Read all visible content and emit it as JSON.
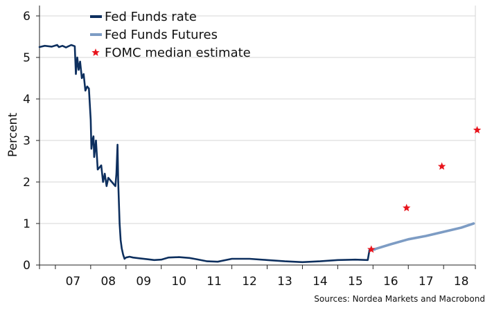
{
  "chart_data": {
    "type": "line",
    "title": "",
    "xlabel": "",
    "ylabel": "Percent",
    "ylim": [
      0,
      6.25
    ],
    "xlim": [
      2006.55,
      2018.9
    ],
    "grid": true,
    "legend_placement": "top-left",
    "x_ticks": [
      2006.5,
      2007,
      2008,
      2009,
      2010,
      2011,
      2012,
      2013,
      2014,
      2015,
      2016,
      2017,
      2018,
      2018.9
    ],
    "x_tick_labels": [
      {
        "x": 2007.5,
        "label": "07"
      },
      {
        "x": 2008.5,
        "label": "08"
      },
      {
        "x": 2009.5,
        "label": "09"
      },
      {
        "x": 2010.5,
        "label": "10"
      },
      {
        "x": 2011.5,
        "label": "11"
      },
      {
        "x": 2012.5,
        "label": "12"
      },
      {
        "x": 2013.5,
        "label": "13"
      },
      {
        "x": 2014.5,
        "label": "14"
      },
      {
        "x": 2015.5,
        "label": "15"
      },
      {
        "x": 2016.5,
        "label": "16"
      },
      {
        "x": 2017.5,
        "label": "17"
      },
      {
        "x": 2018.5,
        "label": "18"
      }
    ],
    "y_ticks": [
      0,
      1,
      2,
      3,
      4,
      5,
      6
    ],
    "y_tick_labels": [
      "0",
      "1",
      "2",
      "3",
      "4",
      "5",
      "6"
    ],
    "source": "Sources: Nordea Markets and Macrobond",
    "series": [
      {
        "name": "Fed Funds rate",
        "color": "#0d2f5e",
        "style": "line",
        "x": [
          2006.55,
          2006.7,
          2006.9,
          2007.05,
          2007.1,
          2007.2,
          2007.3,
          2007.45,
          2007.55,
          2007.58,
          2007.62,
          2007.66,
          2007.7,
          2007.75,
          2007.8,
          2007.85,
          2007.9,
          2007.95,
          2008.0,
          2008.02,
          2008.05,
          2008.08,
          2008.1,
          2008.15,
          2008.2,
          2008.3,
          2008.35,
          2008.4,
          2008.45,
          2008.5,
          2008.6,
          2008.7,
          2008.73,
          2008.76,
          2008.78,
          2008.8,
          2008.82,
          2008.85,
          2008.88,
          2008.92,
          2008.96,
          2009.0,
          2009.1,
          2009.2,
          2009.4,
          2009.6,
          2009.8,
          2010.0,
          2010.2,
          2010.5,
          2010.8,
          2011.0,
          2011.3,
          2011.6,
          2012.0,
          2012.5,
          2013.0,
          2013.5,
          2014.0,
          2014.5,
          2015.0,
          2015.5,
          2015.85,
          2015.9,
          2016.0,
          2016.05
        ],
        "y": [
          5.25,
          5.28,
          5.26,
          5.3,
          5.25,
          5.28,
          5.24,
          5.3,
          5.27,
          4.6,
          5.0,
          4.7,
          4.9,
          4.5,
          4.6,
          4.2,
          4.3,
          4.25,
          3.5,
          2.8,
          3.0,
          3.1,
          2.6,
          3.0,
          2.3,
          2.4,
          2.0,
          2.2,
          1.9,
          2.1,
          2.0,
          1.9,
          2.2,
          2.9,
          2.0,
          1.5,
          1.0,
          0.6,
          0.4,
          0.25,
          0.15,
          0.18,
          0.2,
          0.18,
          0.16,
          0.14,
          0.12,
          0.13,
          0.18,
          0.19,
          0.17,
          0.14,
          0.09,
          0.08,
          0.15,
          0.15,
          0.12,
          0.09,
          0.07,
          0.09,
          0.12,
          0.13,
          0.12,
          0.36,
          0.37,
          0.37
        ]
      },
      {
        "name": "Fed Funds Futures",
        "color": "#7d9cc4",
        "style": "line",
        "x": [
          2016.0,
          2016.5,
          2017.0,
          2017.5,
          2018.0,
          2018.5,
          2018.85
        ],
        "y": [
          0.37,
          0.5,
          0.62,
          0.7,
          0.8,
          0.9,
          1.0
        ]
      },
      {
        "name": "FOMC median estimate",
        "color": "#e8141c",
        "style": "marker",
        "x": [
          2015.95,
          2016.95,
          2017.95,
          2018.95
        ],
        "y": [
          0.375,
          1.375,
          2.375,
          3.25
        ]
      }
    ]
  }
}
